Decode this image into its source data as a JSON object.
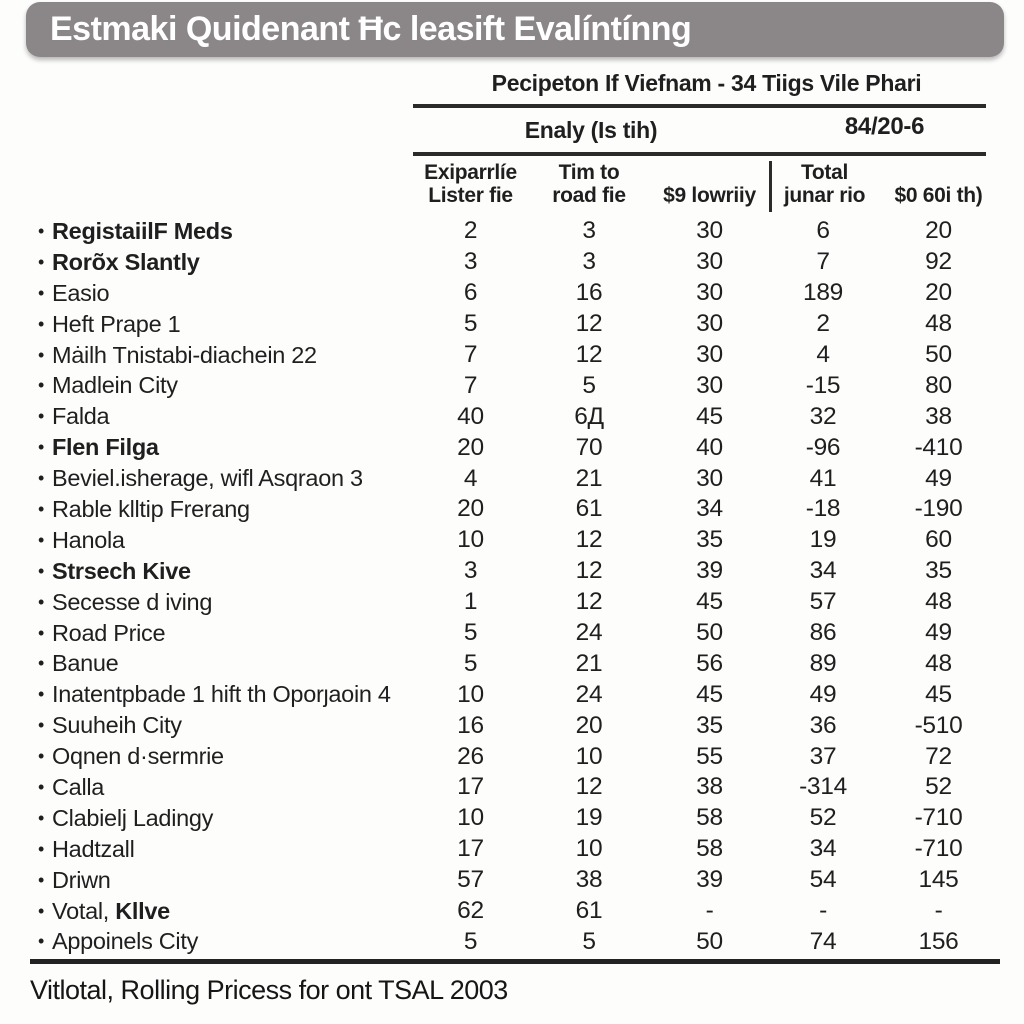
{
  "page": {
    "title_bar": "Estmaki Quidenant Ħc leasift Evalíntínng",
    "footer": "Vitlotal, Rolling Pricess for ont TSAL 2003",
    "colors": {
      "title_bar_bg": "#8b8789",
      "title_bar_text": "#ffffff",
      "text": "#1f1f1f",
      "rule": "#2b2b2b",
      "background": "#fdfdfc"
    },
    "bullet_glyph": "•"
  },
  "chart_data": {
    "type": "table",
    "title": "Pecipeton If Viefnam - 34 Tiigs Vile Phari",
    "group_headers": [
      {
        "label": "Enaly (Is tih)",
        "spans_columns": [
          1,
          2,
          3
        ]
      },
      {
        "label": "84/20-6",
        "spans_columns": [
          4,
          5
        ]
      }
    ],
    "columns": [
      {
        "lines": [
          "Exiparrlíe",
          "Lister fie"
        ]
      },
      {
        "lines": [
          "Tim to",
          "road fie"
        ]
      },
      {
        "lines": [
          "$9 lowriiy"
        ]
      },
      {
        "lines": [
          "Total",
          "junar rio"
        ]
      },
      {
        "lines": [
          "$0 60i th)"
        ]
      }
    ],
    "rows": [
      {
        "label": "RegistaiilF Meds",
        "bold": true,
        "values": [
          "2",
          "3",
          "30",
          "6",
          "20"
        ]
      },
      {
        "label": "Rorõx Slantly",
        "bold": true,
        "values": [
          "3",
          "3",
          "30",
          "7",
          "92"
        ]
      },
      {
        "label": "Easio",
        "bold": false,
        "values": [
          "6",
          "16",
          "30",
          "189",
          "20"
        ]
      },
      {
        "label": "Heft Prape 1",
        "bold": false,
        "values": [
          "5",
          "12",
          "30",
          "2",
          "48"
        ]
      },
      {
        "label": "Mȧilh Tnistabi-diachein 22",
        "bold": false,
        "values": [
          "7",
          "12",
          "30",
          "4",
          "50"
        ]
      },
      {
        "label": "Madlein City",
        "bold": false,
        "values": [
          "7",
          "5",
          "30",
          "-15",
          "80"
        ]
      },
      {
        "label": "Falda",
        "bold": false,
        "values": [
          "40",
          "6Д",
          "45",
          "32",
          "38"
        ]
      },
      {
        "label": "Flen Filga",
        "bold": true,
        "values": [
          "20",
          "70",
          "40",
          "-96",
          "-410"
        ]
      },
      {
        "label": "Beviel.isherage, wifl Asqraon 3",
        "bold": false,
        "values": [
          "4",
          "21",
          "30",
          "41",
          "49"
        ]
      },
      {
        "label": "Rable klltip Frerang",
        "bold": false,
        "values": [
          "20",
          "61",
          "34",
          "-18",
          "-190"
        ]
      },
      {
        "label": "Hanola",
        "bold": false,
        "values": [
          "10",
          "12",
          "35",
          "19",
          "60"
        ]
      },
      {
        "label": "Strsech Kive",
        "bold": true,
        "values": [
          "3",
          "12",
          "39",
          "34",
          "35"
        ]
      },
      {
        "label": "Secesse d iving",
        "bold": false,
        "values": [
          "1",
          "12",
          "45",
          "57",
          "48"
        ]
      },
      {
        "label": "Road Price",
        "bold": false,
        "values": [
          "5",
          "24",
          "50",
          "86",
          "49"
        ]
      },
      {
        "label": "Banue",
        "bold": false,
        "values": [
          "5",
          "21",
          "56",
          "89",
          "48"
        ]
      },
      {
        "label": "Inatentpbade 1 hift th Oporȷaoin 4",
        "bold": false,
        "values": [
          "10",
          "24",
          "45",
          "49",
          "45"
        ]
      },
      {
        "label": "Suuheih City",
        "bold": false,
        "values": [
          "16",
          "20",
          "35",
          "36",
          "-510"
        ]
      },
      {
        "label": "Oqnen d·sermrie",
        "bold": false,
        "values": [
          "26",
          "10",
          "55",
          "37",
          "72"
        ]
      },
      {
        "label": "Calla",
        "bold": false,
        "values": [
          "17",
          "12",
          "38",
          "-314",
          "52"
        ]
      },
      {
        "label": "Clabielj Ladingy",
        "bold": false,
        "values": [
          "10",
          "19",
          "58",
          "52",
          "-710"
        ]
      },
      {
        "label": "Hadtzall",
        "bold": false,
        "values": [
          "17",
          "10",
          "58",
          "34",
          "-710"
        ]
      },
      {
        "label": "Driwn",
        "bold": false,
        "values": [
          "57",
          "38",
          "39",
          "54",
          "145"
        ]
      },
      {
        "label": "Votal,",
        "bold": false,
        "bold_suffix": "Kllve",
        "values": [
          "62",
          "61",
          "-",
          "-",
          "-"
        ]
      },
      {
        "label": "Appoinels City",
        "bold": false,
        "values": [
          "5",
          "5",
          "50",
          "74",
          "156"
        ]
      }
    ],
    "footnote": "Vitlotal, Rolling Pricess for ont TSAL 2003",
    "layout": {
      "grid": false,
      "header_rules": 2,
      "bottom_rule": true
    }
  }
}
